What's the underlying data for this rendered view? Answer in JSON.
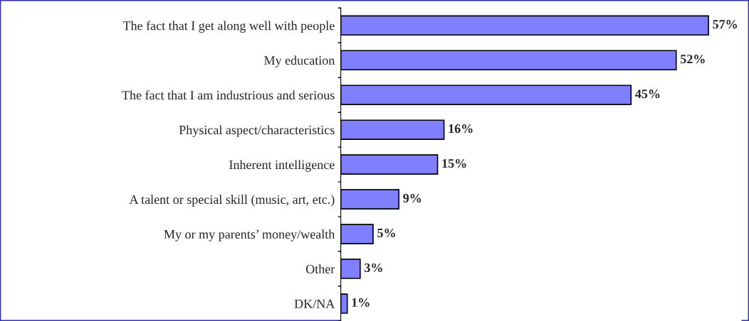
{
  "chart_data": {
    "type": "bar",
    "orientation": "horizontal",
    "categories": [
      "The fact that I get along well with people",
      "My education",
      "The fact that I am industrious and serious",
      "Physical aspect/characteristics",
      "Inherent intelligence",
      "A talent or special skill (music, art, etc.)",
      "My or my parents’ money/wealth",
      "Other",
      "DK/NA"
    ],
    "values": [
      57,
      52,
      45,
      16,
      15,
      9,
      5,
      3,
      1
    ],
    "value_labels": [
      "57%",
      "52%",
      "45%",
      "16%",
      "15%",
      "9%",
      "5%",
      "3%",
      "1%"
    ],
    "color": "#8080ff",
    "grid": false,
    "legend": false
  }
}
